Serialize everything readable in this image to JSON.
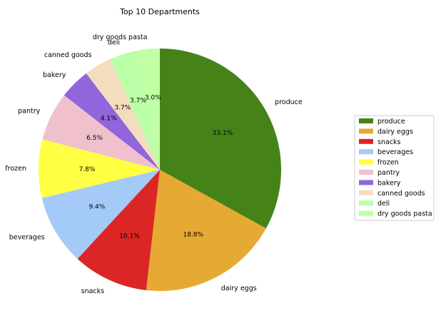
{
  "chart_data": {
    "type": "pie",
    "title": "Top 10 Departments",
    "start_angle_deg": 90,
    "direction": "clockwise",
    "legend_placement": "right",
    "slices": [
      {
        "label": "produce",
        "value": 33.1,
        "pct_label": "33.1%",
        "color": "#458319"
      },
      {
        "label": "dairy eggs",
        "value": 18.8,
        "pct_label": "18.8%",
        "color": "#E6A933"
      },
      {
        "label": "snacks",
        "value": 10.1,
        "pct_label": "10.1%",
        "color": "#DC2626"
      },
      {
        "label": "beverages",
        "value": 9.4,
        "pct_label": "9.4%",
        "color": "#A4CAF8"
      },
      {
        "label": "frozen",
        "value": 7.8,
        "pct_label": "7.8%",
        "color": "#FFFF44"
      },
      {
        "label": "pantry",
        "value": 6.5,
        "pct_label": "6.5%",
        "color": "#F0C0CC"
      },
      {
        "label": "bakery",
        "value": 4.1,
        "pct_label": "4.1%",
        "color": "#9166DC"
      },
      {
        "label": "canned goods",
        "value": 3.7,
        "pct_label": "3.7%",
        "color": "#F4DDBF"
      },
      {
        "label": "deli",
        "value": 3.7,
        "pct_label": "3.7%",
        "color": "#BBFFA8"
      },
      {
        "label": "dry goods pasta",
        "value": 3.0,
        "pct_label": "3.0%",
        "color": "#C0FFA4"
      }
    ]
  }
}
